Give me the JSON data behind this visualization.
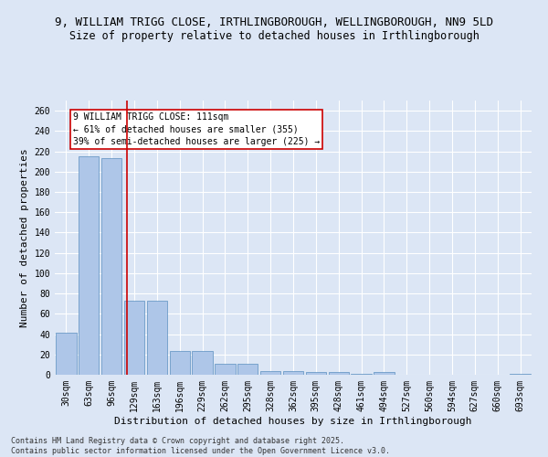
{
  "title": "9, WILLIAM TRIGG CLOSE, IRTHLINGBOROUGH, WELLINGBOROUGH, NN9 5LD",
  "subtitle": "Size of property relative to detached houses in Irthlingborough",
  "xlabel": "Distribution of detached houses by size in Irthlingborough",
  "ylabel": "Number of detached properties",
  "categories": [
    "30sqm",
    "63sqm",
    "96sqm",
    "129sqm",
    "163sqm",
    "196sqm",
    "229sqm",
    "262sqm",
    "295sqm",
    "328sqm",
    "362sqm",
    "395sqm",
    "428sqm",
    "461sqm",
    "494sqm",
    "527sqm",
    "560sqm",
    "594sqm",
    "627sqm",
    "660sqm",
    "693sqm"
  ],
  "values": [
    41,
    215,
    213,
    73,
    73,
    23,
    23,
    11,
    11,
    4,
    4,
    3,
    3,
    1,
    3,
    0,
    0,
    0,
    0,
    0,
    1
  ],
  "bar_color": "#aec6e8",
  "bar_edge_color": "#5a8fc0",
  "vline_x": 2.67,
  "vline_color": "#cc0000",
  "annotation_text": "9 WILLIAM TRIGG CLOSE: 111sqm\n← 61% of detached houses are smaller (355)\n39% of semi-detached houses are larger (225) →",
  "annotation_box_color": "#cc0000",
  "annotation_text_color": "#000000",
  "ylim": [
    0,
    270
  ],
  "yticks": [
    0,
    20,
    40,
    60,
    80,
    100,
    120,
    140,
    160,
    180,
    200,
    220,
    240,
    260
  ],
  "footer": "Contains HM Land Registry data © Crown copyright and database right 2025.\nContains public sector information licensed under the Open Government Licence v3.0.",
  "background_color": "#dce6f5",
  "plot_bg_color": "#dce6f5",
  "grid_color": "#ffffff",
  "title_fontsize": 9,
  "subtitle_fontsize": 8.5,
  "axis_label_fontsize": 8,
  "tick_fontsize": 7,
  "annotation_fontsize": 7,
  "footer_fontsize": 6
}
